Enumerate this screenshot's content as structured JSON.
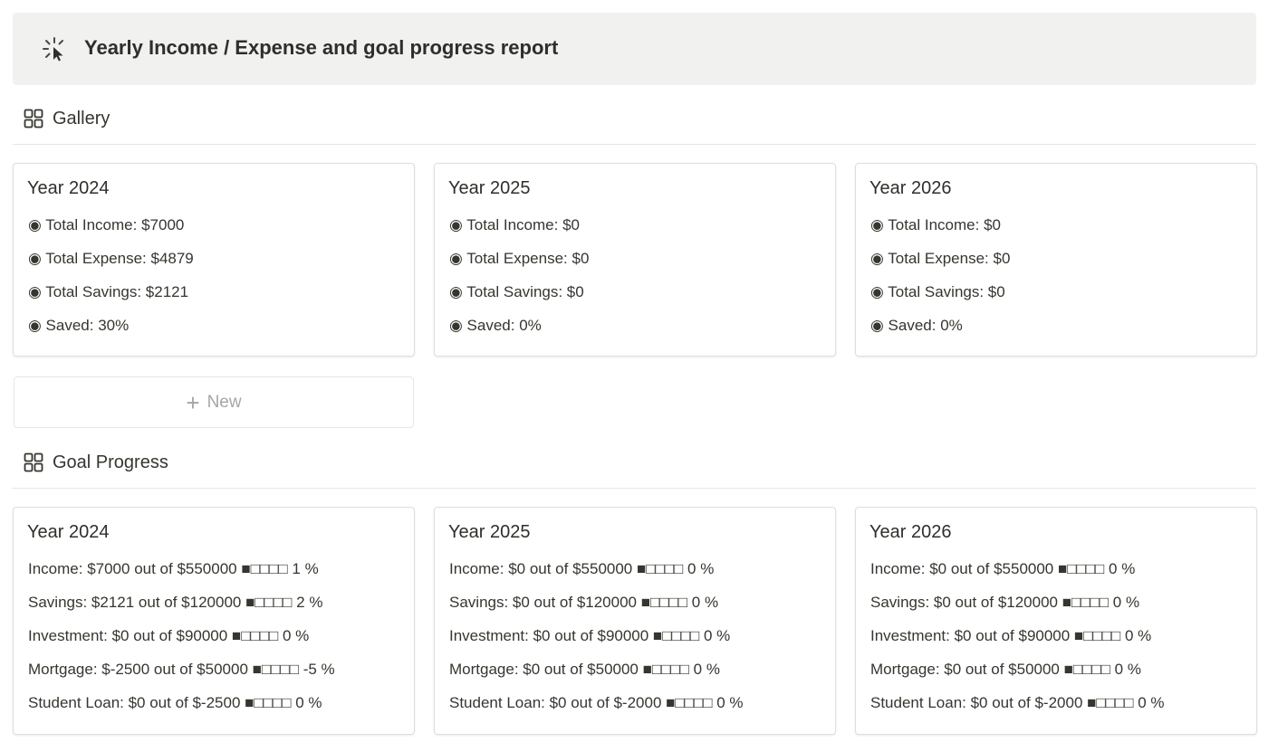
{
  "header": {
    "icon": "loading-cursor-icon",
    "title": "Yearly Income / Expense and goal progress report"
  },
  "gallery": {
    "title": "Gallery",
    "icon": "gallery-grid-icon",
    "cards": [
      {
        "title": "Year 2024",
        "lines": [
          "◉ Total Income: $7000",
          "◉ Total Expense: $4879",
          "◉ Total Savings: $2121",
          "◉ Saved: 30%"
        ]
      },
      {
        "title": "Year 2025",
        "lines": [
          "◉ Total Income: $0",
          "◉ Total Expense: $0",
          "◉ Total Savings: $0",
          "◉ Saved: 0%"
        ]
      },
      {
        "title": "Year 2026",
        "lines": [
          "◉ Total Income: $0",
          "◉ Total Expense: $0",
          "◉ Total Savings: $0",
          "◉ Saved: 0%"
        ]
      }
    ],
    "new_label": "New"
  },
  "goal_progress": {
    "title": "Goal Progress",
    "icon": "gallery-grid-icon",
    "cards": [
      {
        "title": "Year 2024",
        "lines": [
          "Income: $7000 out of $550000 ■□□□□ 1 %",
          "Savings: $2121 out of $120000 ■□□□□ 2 %",
          "Investment: $0 out of $90000 ■□□□□ 0 %",
          "Mortgage: $-2500 out of $50000 ■□□□□ -5 %",
          "Student Loan: $0 out of $-2500 ■□□□□ 0 %"
        ]
      },
      {
        "title": "Year 2025",
        "lines": [
          "Income: $0 out of $550000 ■□□□□ 0 %",
          "Savings: $0 out of $120000 ■□□□□ 0 %",
          "Investment: $0 out of $90000 ■□□□□ 0 %",
          "Mortgage: $0 out of $50000 ■□□□□ 0 %",
          "Student Loan: $0 out of $-2000 ■□□□□ 0 %"
        ]
      },
      {
        "title": "Year 2026",
        "lines": [
          "Income: $0 out of $550000 ■□□□□ 0 %",
          "Savings: $0 out of $120000 ■□□□□ 0 %",
          "Investment: $0 out of $90000 ■□□□□ 0 %",
          "Mortgage: $0 out of $50000 ■□□□□ 0 %",
          "Student Loan: $0 out of $-2000 ■□□□□ 0 %"
        ]
      }
    ]
  }
}
